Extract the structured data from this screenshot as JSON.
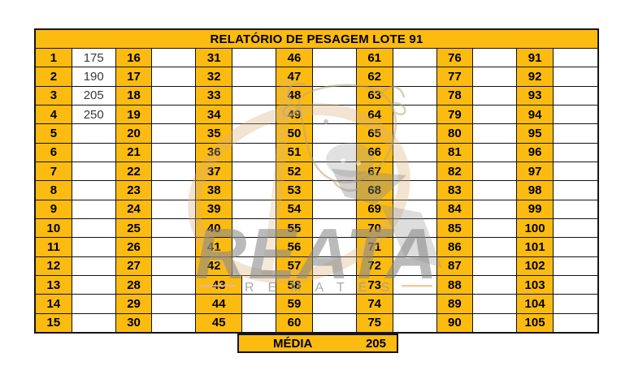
{
  "title": "RELATÓRIO DE PESAGEM LOTE 91",
  "summary": {
    "label": "MÉDIA",
    "value": "205"
  },
  "watermark": {
    "brand": "REATA",
    "tagline": "REMATES"
  },
  "colors": {
    "accent": "#FBBB10",
    "grid": "#141414",
    "value_text": "#3a3a3a",
    "watermark_gray": "#8f8f8f",
    "watermark_tan": "#d9af77"
  },
  "grid": {
    "rows": 15,
    "columns": [
      {
        "numbers": [
          "1",
          "2",
          "3",
          "4",
          "5",
          "6",
          "7",
          "8",
          "9",
          "10",
          "11",
          "12",
          "13",
          "14",
          "15"
        ],
        "values": [
          "175",
          "190",
          "205",
          "250",
          "",
          "",
          "",
          "",
          "",
          "",
          "",
          "",
          "",
          "",
          ""
        ]
      },
      {
        "numbers": [
          "16",
          "17",
          "18",
          "19",
          "20",
          "21",
          "22",
          "23",
          "24",
          "25",
          "26",
          "27",
          "28",
          "29",
          "30"
        ],
        "values": [
          "",
          "",
          "",
          "",
          "",
          "",
          "",
          "",
          "",
          "",
          "",
          "",
          "",
          "",
          ""
        ]
      },
      {
        "numbers": [
          "31",
          "32",
          "33",
          "34",
          "35",
          "36",
          "37",
          "38",
          "39",
          "40",
          "41",
          "42",
          "43",
          "44",
          "45"
        ],
        "values": [
          "",
          "",
          "",
          "",
          "",
          "",
          "",
          "",
          "",
          "",
          "",
          "",
          "",
          "",
          ""
        ]
      },
      {
        "numbers": [
          "46",
          "47",
          "48",
          "49",
          "50",
          "51",
          "52",
          "53",
          "54",
          "55",
          "56",
          "57",
          "58",
          "59",
          "60"
        ],
        "values": [
          "",
          "",
          "",
          "",
          "",
          "",
          "",
          "",
          "",
          "",
          "",
          "",
          "",
          "",
          ""
        ]
      },
      {
        "numbers": [
          "61",
          "62",
          "63",
          "64",
          "65",
          "66",
          "67",
          "68",
          "69",
          "70",
          "71",
          "72",
          "73",
          "74",
          "75"
        ],
        "values": [
          "",
          "",
          "",
          "",
          "",
          "",
          "",
          "",
          "",
          "",
          "",
          "",
          "",
          "",
          ""
        ]
      },
      {
        "numbers": [
          "76",
          "77",
          "78",
          "79",
          "80",
          "81",
          "82",
          "83",
          "84",
          "85",
          "86",
          "87",
          "88",
          "89",
          "90"
        ],
        "values": [
          "",
          "",
          "",
          "",
          "",
          "",
          "",
          "",
          "",
          "",
          "",
          "",
          "",
          "",
          ""
        ]
      },
      {
        "numbers": [
          "91",
          "92",
          "93",
          "94",
          "95",
          "96",
          "97",
          "98",
          "99",
          "100",
          "101",
          "102",
          "103",
          "104",
          "105"
        ],
        "values": [
          "",
          "",
          "",
          "",
          "",
          "",
          "",
          "",
          "",
          "",
          "",
          "",
          "",
          "",
          ""
        ]
      }
    ]
  }
}
